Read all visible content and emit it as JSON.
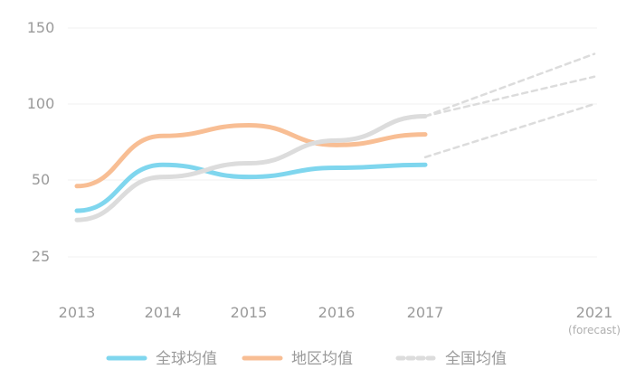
{
  "chart_data": {
    "type": "line",
    "x": [
      "2013",
      "2014",
      "2015",
      "2016",
      "2017",
      "2021"
    ],
    "x_sub": [
      "",
      "",
      "",
      "",
      "",
      "(forecast)"
    ],
    "yticks": [
      "25",
      "50",
      "100",
      "150"
    ],
    "ylim": [
      25,
      150
    ],
    "grid": true,
    "legend_position": "bottom",
    "series": [
      {
        "name": "全球均值",
        "color": "#7fd6ee",
        "values": [
          40,
          60,
          52,
          58,
          60,
          null
        ],
        "forecast": []
      },
      {
        "name": "地区均值",
        "color": "#f8be94",
        "values": [
          48,
          79,
          86,
          73,
          80,
          null
        ],
        "forecast": []
      },
      {
        "name": "全国均值",
        "color": "#dcdcdc",
        "values": [
          37,
          52,
          61,
          76,
          92,
          null
        ],
        "forecast": [
          {
            "from": 92,
            "to": 133
          },
          {
            "from": 92,
            "to": 118
          },
          {
            "from": 65,
            "to": 100
          }
        ]
      }
    ]
  }
}
